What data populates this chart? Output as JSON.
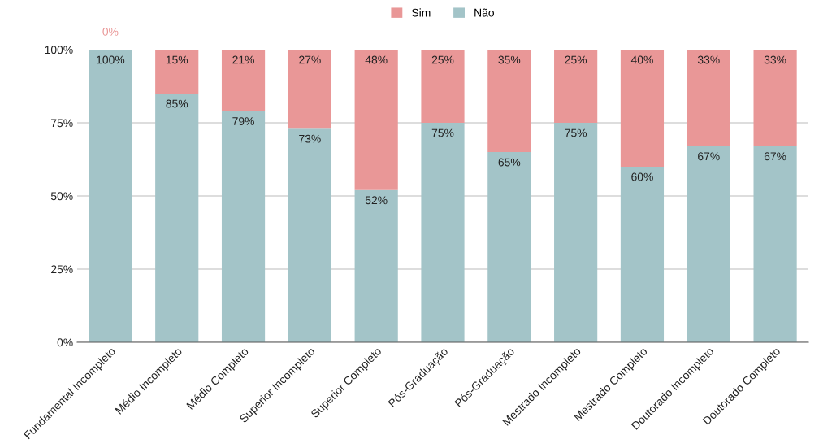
{
  "chart_data": {
    "type": "bar",
    "stacked": true,
    "categories": [
      "Fundamental Incompleto",
      "Médio Incompleto",
      "Médio Completo",
      "Superior Incompleto",
      "Superior Completo",
      "Pós-Graduação",
      "Pós-Graduação",
      "Mestrado Incompleto",
      "Mestrado Completo",
      "Doutorado Incompleto",
      "Doutorado Completo"
    ],
    "series": [
      {
        "name": "Não",
        "color": "#a3c4c8",
        "values": [
          100,
          85,
          79,
          73,
          52,
          75,
          65,
          75,
          60,
          67,
          67
        ],
        "value_labels": [
          "100%",
          "85%",
          "79%",
          "73%",
          "52%",
          "75%",
          "65%",
          "75%",
          "60%",
          "67%",
          "67%"
        ]
      },
      {
        "name": "Sim",
        "color": "#e99797",
        "values": [
          0,
          15,
          21,
          27,
          48,
          25,
          35,
          25,
          40,
          33,
          33
        ],
        "value_labels": [
          "0%",
          "15%",
          "21%",
          "27%",
          "48%",
          "25%",
          "35%",
          "25%",
          "40%",
          "33%",
          "33%"
        ]
      }
    ],
    "ylim": [
      0,
      100
    ],
    "yticks": [
      {
        "value": 0,
        "label": "0%"
      },
      {
        "value": 25,
        "label": "25%"
      },
      {
        "value": 50,
        "label": "50%"
      },
      {
        "value": 75,
        "label": "75%"
      },
      {
        "value": 100,
        "label": "100%"
      }
    ],
    "grid": "y",
    "legend": "top"
  }
}
